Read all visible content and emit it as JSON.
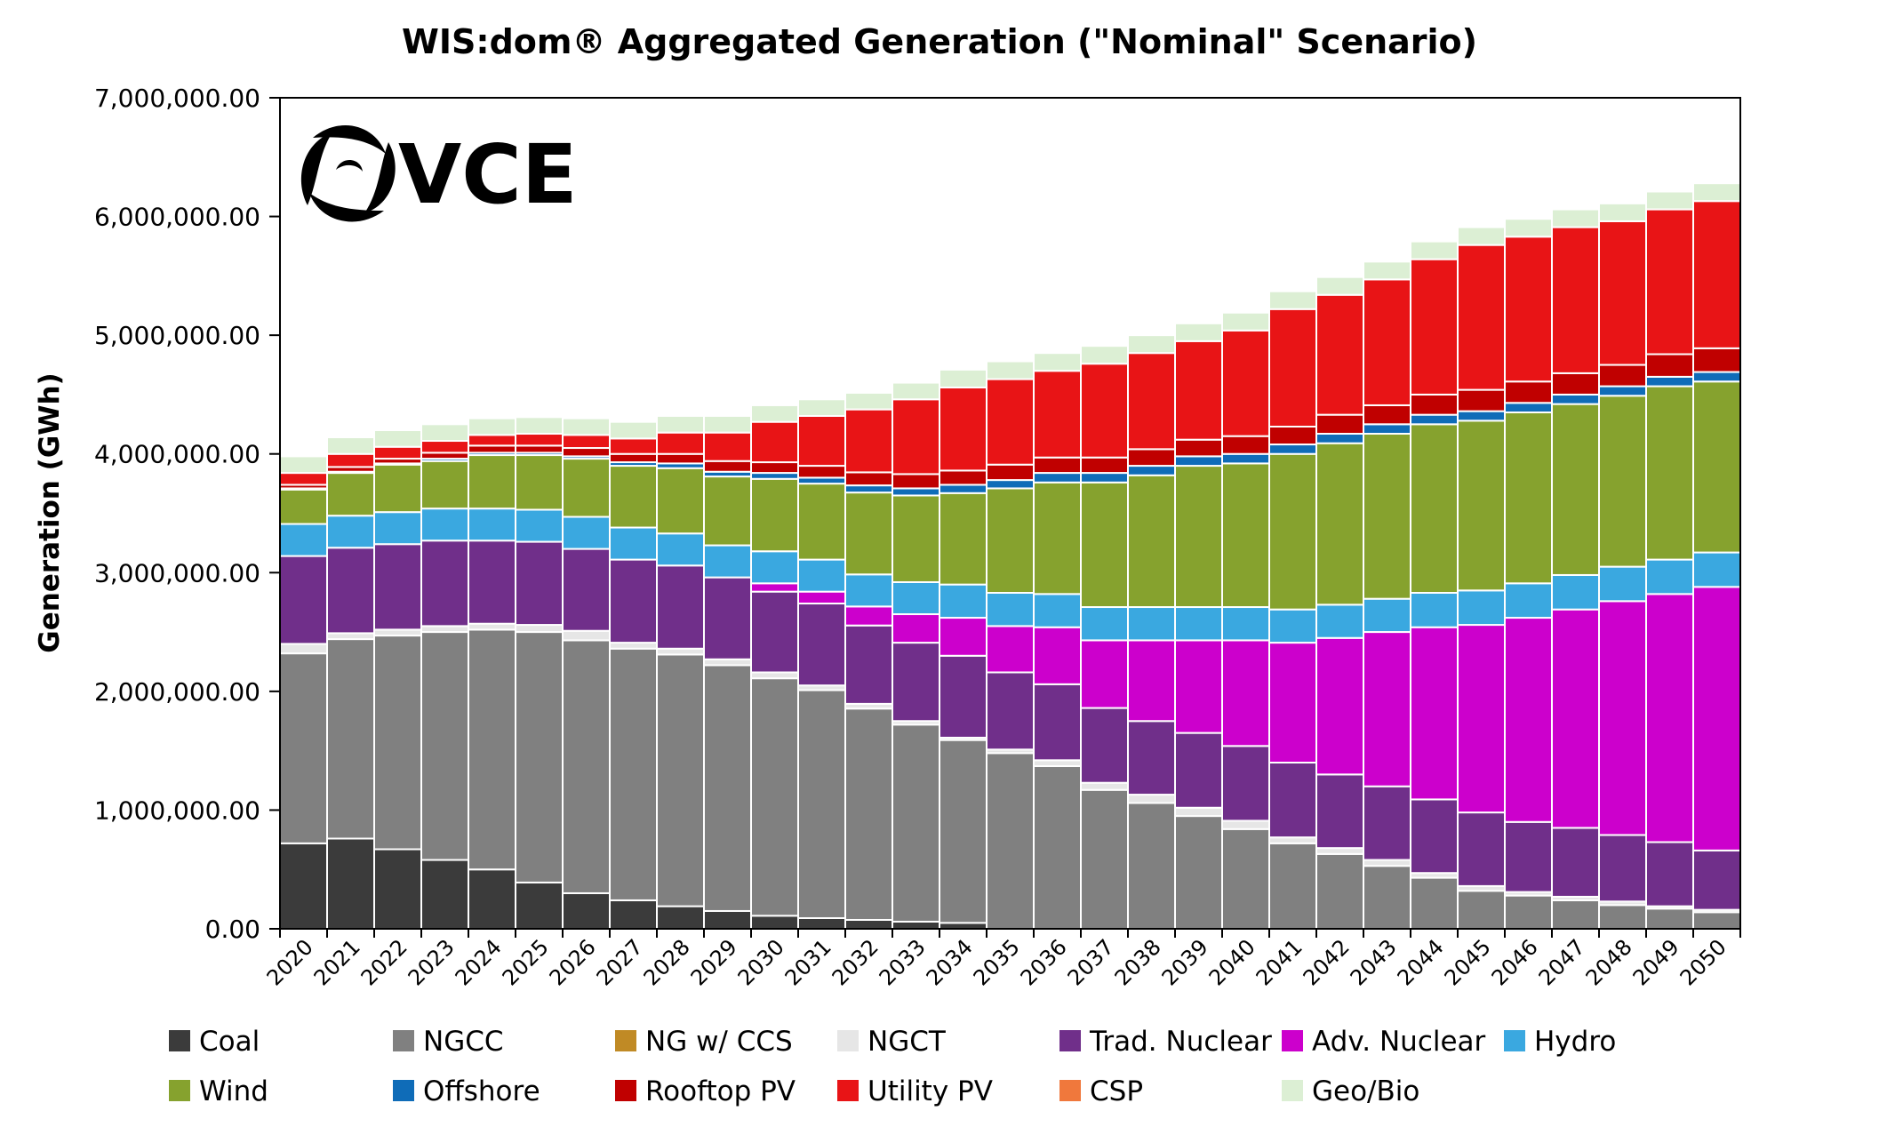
{
  "chart_data": {
    "type": "bar",
    "stacked": true,
    "title": "WIS:dom® Aggregated Generation (\"Nominal\" Scenario)",
    "ylabel": "Generation (GWh)",
    "ylim": [
      0,
      7000000
    ],
    "yticks": [
      0,
      1000000,
      2000000,
      3000000,
      4000000,
      5000000,
      6000000,
      7000000
    ],
    "ytick_labels": [
      "0.00",
      "1,000,000.00",
      "2,000,000.00",
      "3,000,000.00",
      "4,000,000.00",
      "5,000,000.00",
      "6,000,000.00",
      "7,000,000.00"
    ],
    "grid": false,
    "legend_position": "bottom",
    "categories": [
      "2020",
      "2021",
      "2022",
      "2023",
      "2024",
      "2025",
      "2026",
      "2027",
      "2028",
      "2029",
      "2030",
      "2031",
      "2032",
      "2033",
      "2034",
      "2035",
      "2036",
      "2037",
      "2038",
      "2039",
      "2040",
      "2041",
      "2042",
      "2043",
      "2044",
      "2045",
      "2046",
      "2047",
      "2048",
      "2049",
      "2050"
    ],
    "series": [
      {
        "name": "Coal",
        "color": "#3b3b3b",
        "values": [
          720000,
          760000,
          670000,
          580000,
          500000,
          390000,
          300000,
          240000,
          190000,
          150000,
          110000,
          90000,
          75000,
          60000,
          50000,
          0,
          0,
          0,
          0,
          0,
          0,
          0,
          0,
          0,
          0,
          0,
          0,
          0,
          0,
          0,
          0
        ]
      },
      {
        "name": "NGCC",
        "color": "#808080",
        "values": [
          1600000,
          1680000,
          1800000,
          1920000,
          2020000,
          2110000,
          2130000,
          2120000,
          2120000,
          2070000,
          2000000,
          1920000,
          1780000,
          1660000,
          1540000,
          1480000,
          1370000,
          1170000,
          1060000,
          950000,
          840000,
          720000,
          630000,
          530000,
          430000,
          320000,
          280000,
          240000,
          200000,
          170000,
          140000
        ]
      },
      {
        "name": "NG w/ CCS",
        "color": "#c08a25",
        "values": [
          0,
          0,
          0,
          0,
          0,
          0,
          0,
          0,
          0,
          0,
          0,
          0,
          0,
          0,
          0,
          0,
          0,
          0,
          0,
          0,
          0,
          0,
          0,
          0,
          0,
          0,
          0,
          0,
          0,
          0,
          0
        ]
      },
      {
        "name": "NGCT",
        "color": "#e6e6e6",
        "values": [
          80000,
          50000,
          50000,
          50000,
          50000,
          60000,
          80000,
          50000,
          50000,
          50000,
          50000,
          40000,
          40000,
          30000,
          20000,
          30000,
          50000,
          60000,
          70000,
          70000,
          70000,
          50000,
          50000,
          50000,
          40000,
          40000,
          30000,
          30000,
          30000,
          20000,
          20000
        ]
      },
      {
        "name": "Trad. Nuclear",
        "color": "#702f8a",
        "values": [
          740000,
          720000,
          720000,
          720000,
          700000,
          700000,
          690000,
          700000,
          700000,
          690000,
          680000,
          690000,
          660000,
          660000,
          690000,
          650000,
          640000,
          630000,
          620000,
          630000,
          630000,
          630000,
          620000,
          620000,
          620000,
          620000,
          590000,
          580000,
          560000,
          540000,
          500000
        ]
      },
      {
        "name": "Adv. Nuclear",
        "color": "#cc00cc",
        "values": [
          0,
          0,
          0,
          0,
          0,
          0,
          0,
          0,
          0,
          0,
          70000,
          100000,
          160000,
          240000,
          320000,
          390000,
          480000,
          570000,
          680000,
          780000,
          890000,
          1010000,
          1150000,
          1300000,
          1450000,
          1580000,
          1720000,
          1840000,
          1970000,
          2090000,
          2220000
        ]
      },
      {
        "name": "Hydro",
        "color": "#3aa8e0",
        "values": [
          270000,
          270000,
          270000,
          270000,
          270000,
          270000,
          270000,
          270000,
          270000,
          270000,
          270000,
          270000,
          270000,
          270000,
          280000,
          280000,
          280000,
          280000,
          280000,
          280000,
          280000,
          280000,
          280000,
          280000,
          290000,
          290000,
          290000,
          290000,
          290000,
          290000,
          290000
        ]
      },
      {
        "name": "Wind",
        "color": "#86a22e",
        "values": [
          290000,
          360000,
          400000,
          400000,
          450000,
          460000,
          490000,
          520000,
          550000,
          580000,
          610000,
          640000,
          690000,
          730000,
          770000,
          880000,
          940000,
          1050000,
          1110000,
          1190000,
          1210000,
          1310000,
          1360000,
          1390000,
          1420000,
          1430000,
          1440000,
          1440000,
          1440000,
          1460000,
          1440000
        ]
      },
      {
        "name": "Offshore",
        "color": "#0f6cb8",
        "values": [
          10000,
          10000,
          10000,
          20000,
          20000,
          20000,
          20000,
          30000,
          40000,
          40000,
          50000,
          50000,
          60000,
          60000,
          70000,
          70000,
          80000,
          80000,
          80000,
          80000,
          80000,
          80000,
          80000,
          80000,
          80000,
          80000,
          80000,
          80000,
          80000,
          80000,
          80000
        ]
      },
      {
        "name": "Rooftop PV",
        "color": "#c00000",
        "values": [
          30000,
          40000,
          40000,
          50000,
          60000,
          60000,
          70000,
          70000,
          80000,
          90000,
          90000,
          100000,
          110000,
          120000,
          120000,
          130000,
          130000,
          130000,
          140000,
          140000,
          150000,
          150000,
          160000,
          160000,
          170000,
          180000,
          180000,
          180000,
          180000,
          190000,
          200000
        ]
      },
      {
        "name": "Utility PV",
        "color": "#e81416",
        "values": [
          100000,
          110000,
          100000,
          100000,
          90000,
          100000,
          110000,
          130000,
          180000,
          240000,
          340000,
          420000,
          530000,
          630000,
          700000,
          720000,
          730000,
          790000,
          810000,
          830000,
          890000,
          990000,
          1010000,
          1060000,
          1140000,
          1220000,
          1220000,
          1230000,
          1210000,
          1220000,
          1240000
        ]
      },
      {
        "name": "CSP",
        "color": "#f0783c",
        "values": [
          0,
          0,
          0,
          0,
          0,
          0,
          0,
          0,
          0,
          0,
          0,
          0,
          0,
          0,
          0,
          0,
          0,
          0,
          0,
          0,
          0,
          0,
          0,
          0,
          0,
          0,
          0,
          0,
          0,
          0,
          0
        ]
      },
      {
        "name": "Geo/Bio",
        "color": "#dcefd4",
        "values": [
          140000,
          140000,
          140000,
          140000,
          140000,
          140000,
          140000,
          140000,
          140000,
          140000,
          140000,
          140000,
          140000,
          140000,
          150000,
          150000,
          150000,
          150000,
          150000,
          150000,
          150000,
          150000,
          150000,
          150000,
          150000,
          150000,
          150000,
          150000,
          150000,
          150000,
          150000
        ]
      }
    ]
  },
  "logo": {
    "text": "VCE",
    "icon": "swirl-icon"
  }
}
